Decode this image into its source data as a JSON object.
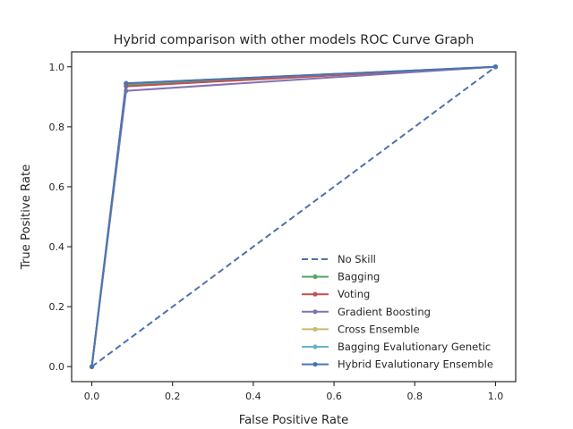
{
  "chart_data": {
    "type": "line",
    "title": "Hybrid comparison with other models ROC Curve Graph",
    "xlabel": "False Positive Rate",
    "ylabel": "True Positive Rate",
    "xlim": [
      -0.05,
      1.05
    ],
    "ylim": [
      -0.05,
      1.05
    ],
    "xticks": [
      0.0,
      0.2,
      0.4,
      0.6,
      0.8,
      1.0
    ],
    "yticks": [
      0.0,
      0.2,
      0.4,
      0.6,
      0.8,
      1.0
    ],
    "xtick_labels": [
      "0.0",
      "0.2",
      "0.4",
      "0.6",
      "0.8",
      "1.0"
    ],
    "ytick_labels": [
      "0.0",
      "0.2",
      "0.4",
      "0.6",
      "0.8",
      "1.0"
    ],
    "grid": false,
    "legend_position": "lower right",
    "series": [
      {
        "name": "No Skill",
        "color": "#4c72b0",
        "style": "dashed",
        "marker": false,
        "x": [
          0,
          1
        ],
        "y": [
          0,
          1
        ]
      },
      {
        "name": "Bagging",
        "color": "#55a868",
        "style": "solid",
        "marker": true,
        "x": [
          0,
          0.085,
          1
        ],
        "y": [
          0,
          0.94,
          1
        ]
      },
      {
        "name": "Voting",
        "color": "#c44e52",
        "style": "solid",
        "marker": true,
        "x": [
          0,
          0.085,
          1
        ],
        "y": [
          0,
          0.935,
          1
        ]
      },
      {
        "name": "Gradient Boosting",
        "color": "#8172b2",
        "style": "solid",
        "marker": true,
        "x": [
          0,
          0.085,
          1
        ],
        "y": [
          0,
          0.92,
          1
        ]
      },
      {
        "name": "Cross Ensemble",
        "color": "#ccb974",
        "style": "solid",
        "marker": true,
        "x": [
          0,
          0.085,
          1
        ],
        "y": [
          0,
          0.945,
          1
        ]
      },
      {
        "name": "Bagging Evalutionary Genetic",
        "color": "#64b5cd",
        "style": "solid",
        "marker": true,
        "x": [
          0,
          0.085,
          1
        ],
        "y": [
          0,
          0.945,
          1
        ]
      },
      {
        "name": "Hybrid Evalutionary Ensemble",
        "color": "#4c72b0",
        "style": "solid",
        "marker": true,
        "x": [
          0,
          0.085,
          1
        ],
        "y": [
          0,
          0.945,
          1
        ]
      }
    ]
  }
}
